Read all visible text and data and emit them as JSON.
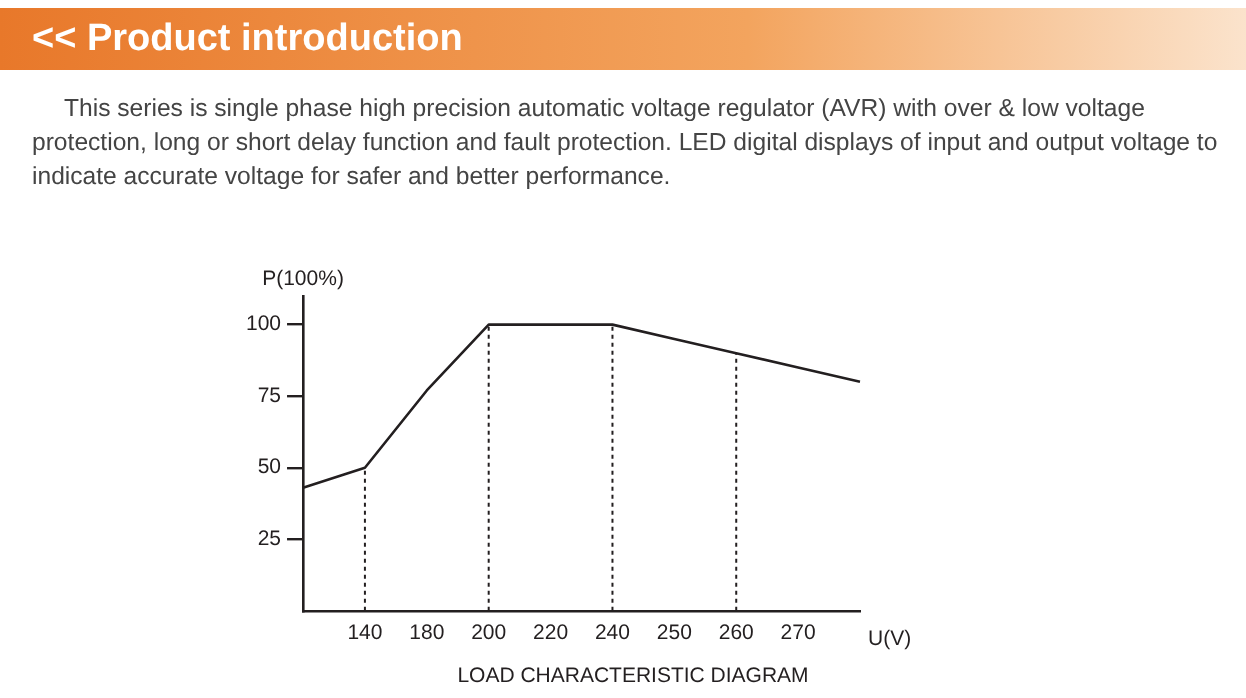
{
  "chart_data": {
    "type": "line",
    "title": "<< Product introduction",
    "subtitle": "This series is single phase high precision automatic voltage regulator (AVR) with over & low voltage protection, long or short delay function and fault protection. LED digital displays of input and output voltage to indicate accurate voltage for safer and better performance.",
    "xlabel": "U(V)",
    "ylabel": "P(100%)",
    "annotations": [
      "LOAD CHARACTERISTIC DIAGRAM"
    ],
    "categories": [
      null,
      "140",
      "180",
      "200",
      "220",
      "240",
      "250",
      "260",
      "270",
      null
    ],
    "series": [
      {
        "color": "#231f20",
        "values": [
          43,
          50,
          77,
          100,
          100,
          100,
          95,
          90,
          85,
          80
        ]
      }
    ],
    "ylim": [
      0,
      110
    ],
    "yticks": [
      25,
      50,
      75,
      100
    ],
    "ref_lines": [
      {
        "axis": "x",
        "value": "140",
        "line_style": "dotted",
        "color": "#231f20"
      },
      {
        "axis": "x",
        "value": "200",
        "line_style": "dotted",
        "color": "#231f20"
      },
      {
        "axis": "x",
        "value": "240",
        "line_style": "dotted",
        "color": "#231f20"
      },
      {
        "axis": "x",
        "value": "260",
        "line_style": "dotted",
        "color": "#231f20"
      }
    ],
    "marker": "none",
    "line_style": "solid",
    "legend": false
  }
}
